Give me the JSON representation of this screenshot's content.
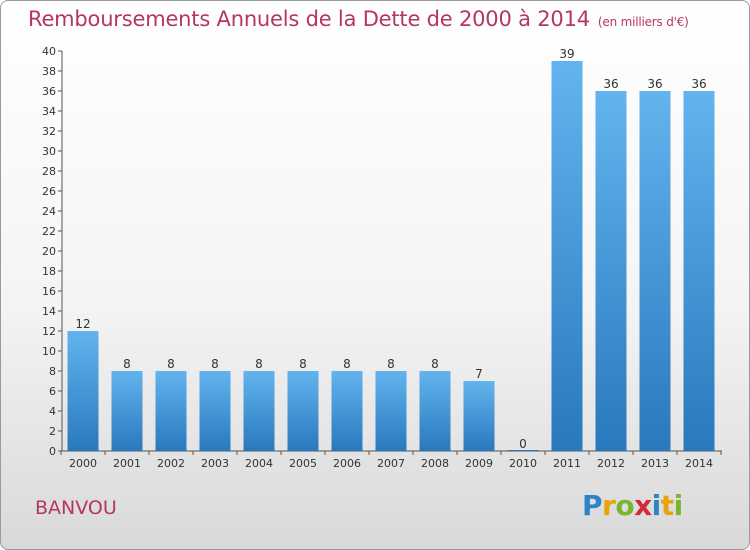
{
  "header": {
    "title": "Remboursements Annuels de la Dette de 2000 à 2014",
    "subtitle": "(en milliers d'€)"
  },
  "footer": {
    "commune": "BANVOU",
    "logo": [
      "P",
      "r",
      "o",
      "x",
      "i",
      "t",
      "i"
    ]
  },
  "colors": {
    "title": "#b5365f",
    "bar_light": "#5fb0ec",
    "bar_dark": "#2a78bd"
  },
  "chart_data": {
    "type": "bar",
    "title": "Remboursements Annuels de la Dette de 2000 à 2014",
    "categories": [
      "2000",
      "2001",
      "2002",
      "2003",
      "2004",
      "2005",
      "2006",
      "2007",
      "2008",
      "2009",
      "2010",
      "2011",
      "2012",
      "2013",
      "2014"
    ],
    "values": [
      12,
      8,
      8,
      8,
      8,
      8,
      8,
      8,
      8,
      7,
      0,
      39,
      36,
      36,
      36
    ],
    "ylim": [
      0,
      40
    ],
    "yticks": [
      0,
      2,
      4,
      6,
      8,
      10,
      12,
      14,
      16,
      18,
      20,
      22,
      24,
      26,
      28,
      30,
      32,
      34,
      36,
      38,
      40
    ],
    "xlabel": "",
    "ylabel": "",
    "grid": false,
    "data_labels": true
  }
}
